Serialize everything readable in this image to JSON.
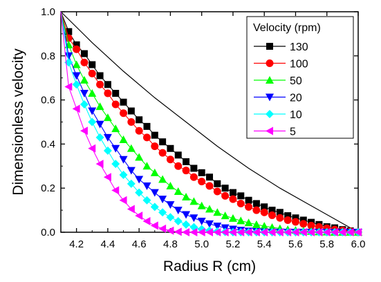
{
  "chart_data": {
    "type": "line",
    "title": "",
    "xlabel": "Radius R (cm)",
    "ylabel": "Dimensionless velocity",
    "xlim": [
      4.1,
      6.0
    ],
    "ylim": [
      0.0,
      1.0
    ],
    "x_ticks": [
      "4.2",
      "4.4",
      "4.6",
      "4.8",
      "5.0",
      "5.2",
      "5.4",
      "5.6",
      "5.8",
      "6.0"
    ],
    "x_tick_values": [
      4.2,
      4.4,
      4.6,
      4.8,
      5.0,
      5.2,
      5.4,
      5.6,
      5.8,
      6.0
    ],
    "y_ticks": [
      "0.0",
      "0.2",
      "0.4",
      "0.6",
      "0.8",
      "1.0"
    ],
    "y_tick_values": [
      0.0,
      0.2,
      0.4,
      0.6,
      0.8,
      1.0
    ],
    "grid": false,
    "legend": {
      "title": "Velocity (rpm)",
      "placement": "top-right"
    },
    "x": [
      4.1,
      4.15,
      4.2,
      4.25,
      4.3,
      4.35,
      4.4,
      4.45,
      4.5,
      4.55,
      4.6,
      4.65,
      4.7,
      4.75,
      4.8,
      4.85,
      4.9,
      4.95,
      5.0,
      5.05,
      5.1,
      5.15,
      5.2,
      5.25,
      5.3,
      5.35,
      5.4,
      5.45,
      5.5,
      5.55,
      5.6,
      5.65,
      5.7,
      5.75,
      5.8,
      5.85,
      5.9,
      5.95,
      6.0
    ],
    "series": [
      {
        "name": "130",
        "marker": "square",
        "color": "#000000",
        "values": [
          1.0,
          0.91,
          0.85,
          0.81,
          0.76,
          0.71,
          0.67,
          0.63,
          0.59,
          0.55,
          0.51,
          0.48,
          0.44,
          0.41,
          0.38,
          0.35,
          0.32,
          0.29,
          0.27,
          0.25,
          0.22,
          0.2,
          0.18,
          0.165,
          0.145,
          0.13,
          0.115,
          0.1,
          0.09,
          0.075,
          0.065,
          0.055,
          0.045,
          0.035,
          0.025,
          0.02,
          0.012,
          0.006,
          0.0
        ]
      },
      {
        "name": "100",
        "marker": "circle",
        "color": "#ff0000",
        "values": [
          1.0,
          0.88,
          0.83,
          0.77,
          0.72,
          0.67,
          0.63,
          0.58,
          0.54,
          0.5,
          0.46,
          0.43,
          0.39,
          0.36,
          0.33,
          0.3,
          0.28,
          0.25,
          0.23,
          0.21,
          0.185,
          0.165,
          0.15,
          0.13,
          0.115,
          0.1,
          0.09,
          0.077,
          0.065,
          0.055,
          0.047,
          0.038,
          0.03,
          0.024,
          0.018,
          0.012,
          0.008,
          0.004,
          0.0
        ]
      },
      {
        "name": "50",
        "marker": "triangle-up",
        "color": "#00ff00",
        "values": [
          1.0,
          0.85,
          0.76,
          0.69,
          0.63,
          0.57,
          0.52,
          0.47,
          0.42,
          0.38,
          0.34,
          0.3,
          0.27,
          0.24,
          0.21,
          0.185,
          0.16,
          0.14,
          0.12,
          0.105,
          0.09,
          0.075,
          0.063,
          0.052,
          0.043,
          0.035,
          0.028,
          0.022,
          0.017,
          0.012,
          0.009,
          0.006,
          0.004,
          0.002,
          0.001,
          0.0,
          0.0,
          0.0,
          0.0
        ]
      },
      {
        "name": "20",
        "marker": "triangle-down",
        "color": "#0000ff",
        "values": [
          1.0,
          0.8,
          0.71,
          0.63,
          0.55,
          0.49,
          0.43,
          0.38,
          0.33,
          0.28,
          0.24,
          0.21,
          0.18,
          0.15,
          0.125,
          0.1,
          0.08,
          0.065,
          0.05,
          0.038,
          0.028,
          0.02,
          0.014,
          0.009,
          0.005,
          0.003,
          0.001,
          0.0,
          0.0,
          0.0,
          0.0,
          0.0,
          0.0,
          0.0,
          0.0,
          0.0,
          0.0,
          0.0,
          0.0
        ]
      },
      {
        "name": "10",
        "marker": "diamond",
        "color": "#00ffff",
        "values": [
          1.0,
          0.77,
          0.67,
          0.58,
          0.5,
          0.43,
          0.37,
          0.31,
          0.26,
          0.22,
          0.18,
          0.145,
          0.115,
          0.09,
          0.068,
          0.05,
          0.035,
          0.023,
          0.014,
          0.008,
          0.004,
          0.001,
          0.0,
          0.0,
          0.0,
          0.0,
          0.0,
          0.0,
          0.0,
          0.0,
          0.0,
          0.0,
          0.0,
          0.0,
          0.0,
          0.0,
          0.0,
          0.0,
          0.0
        ]
      },
      {
        "name": "5",
        "marker": "triangle-left",
        "color": "#ff00ff",
        "values": [
          1.0,
          0.66,
          0.56,
          0.46,
          0.38,
          0.31,
          0.25,
          0.19,
          0.145,
          0.105,
          0.075,
          0.05,
          0.03,
          0.016,
          0.007,
          0.002,
          0.0,
          0.0,
          0.0,
          0.0,
          0.0,
          0.0,
          0.0,
          0.0,
          0.0,
          0.0,
          0.0,
          0.0,
          0.0,
          0.0,
          0.0,
          0.0,
          0.0,
          0.0,
          0.0,
          0.0,
          0.0,
          0.0,
          0.0
        ]
      }
    ],
    "reference_line": {
      "color": "#000000",
      "x": [
        4.1,
        4.3,
        4.5,
        4.7,
        4.9,
        5.1,
        5.3,
        5.5,
        5.7,
        5.9,
        6.0
      ],
      "values": [
        1.0,
        0.86,
        0.73,
        0.61,
        0.5,
        0.39,
        0.29,
        0.2,
        0.12,
        0.04,
        0.0
      ]
    }
  }
}
